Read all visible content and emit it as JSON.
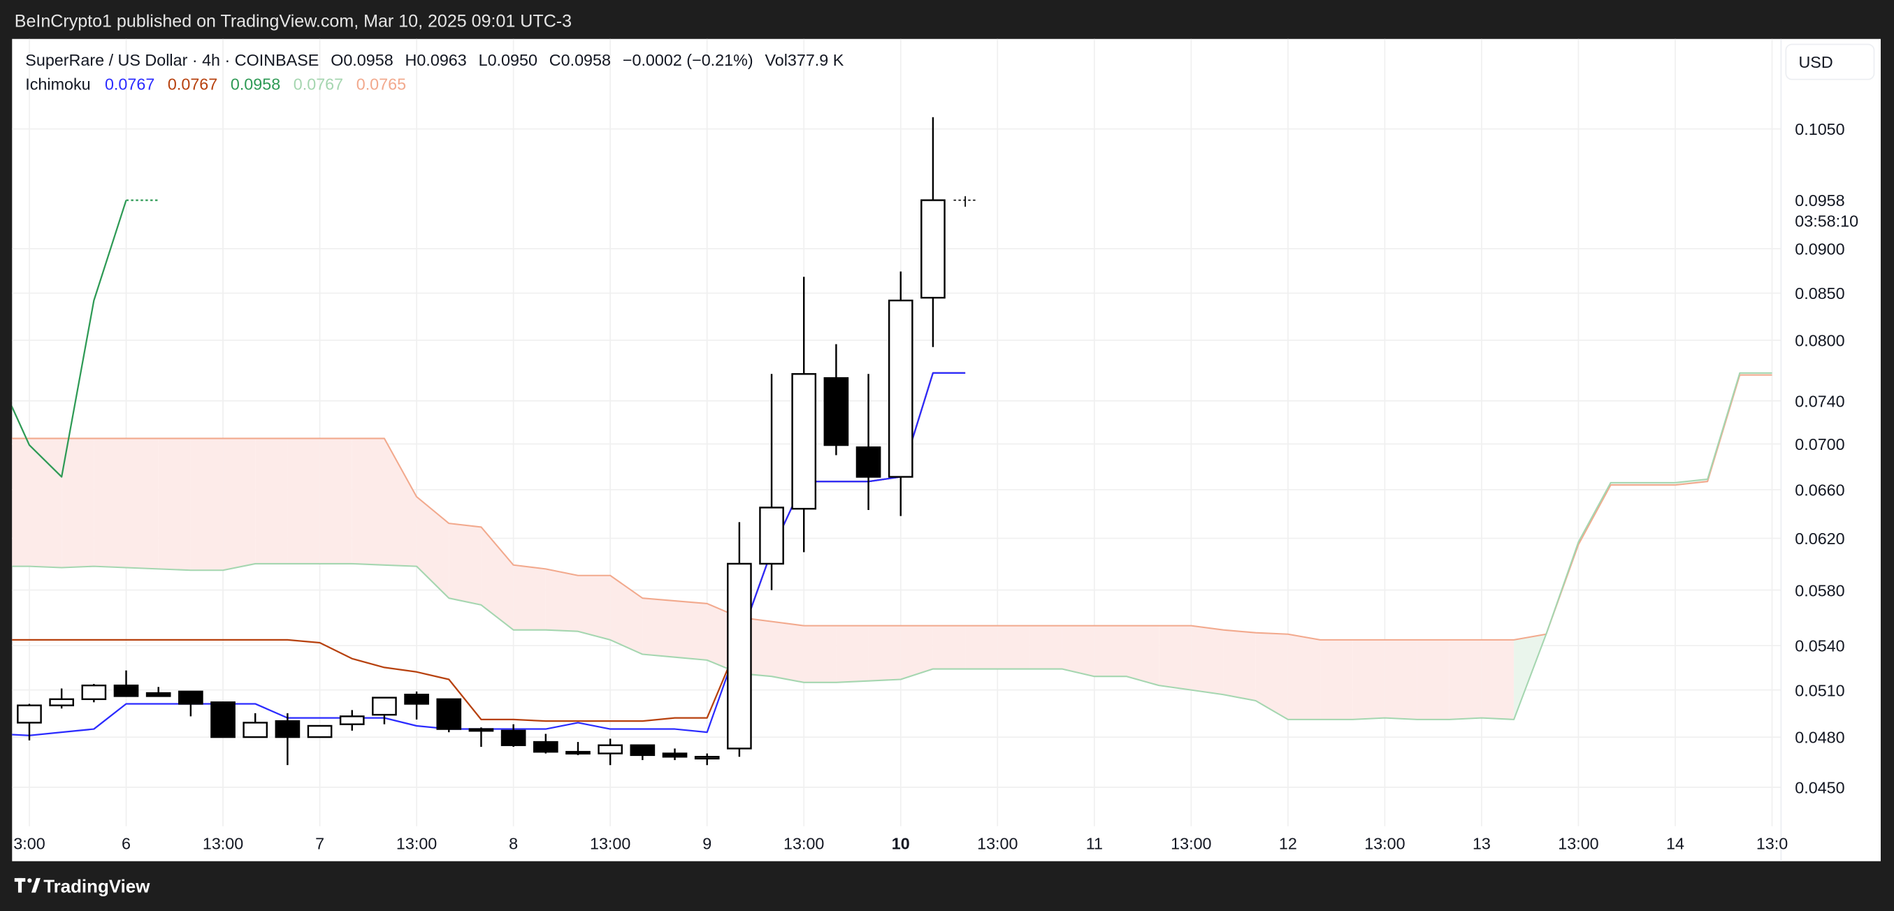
{
  "publish_bar": {
    "text": "BeInCrypto1 published on TradingView.com, Mar 10, 2025 09:01 UTC-3"
  },
  "legend": {
    "symbol": "SuperRare / US Dollar · 4h · COINBASE",
    "open": "O0.0958",
    "high": "H0.0963",
    "low": "L0.0950",
    "close": "C0.0958",
    "change": "−0.0002 (−0.21%)",
    "volume": "Vol377.9 K",
    "indicator_name": "Ichimoku",
    "indicator_values": [
      "0.0767",
      "0.0767",
      "0.0958",
      "0.0767",
      "0.0765"
    ]
  },
  "currency_button": "USD",
  "footer": {
    "brand": "TradingView"
  },
  "colors": {
    "tenkan": "#2b2bff",
    "kijun": "#b7410e",
    "chikou": "#2e9a55",
    "senkou_a": "#a5d6b0",
    "senkou_b": "#f2a98d",
    "cloud_bear": "#fdebe9",
    "cloud_bull": "#eaf5ec",
    "frame": "#1e1e1e"
  },
  "chart_data": {
    "type": "candlestick",
    "title": "SuperRare / US Dollar · 4h · COINBASE",
    "y_scale": "log",
    "ylim": [
      0.0428,
      0.1179
    ],
    "xlim_bars": [
      -0.535,
      54.26
    ],
    "grid": true,
    "price_ticks": [
      "0.1050",
      "0.0900",
      "0.0850",
      "0.0800",
      "0.0740",
      "0.0700",
      "0.0660",
      "0.0620",
      "0.0580",
      "0.0540",
      "0.0510",
      "0.0480",
      "0.0450"
    ],
    "current_price": {
      "value": "0.0958",
      "countdown": "03:58:10"
    },
    "x_ticks": [
      {
        "bar": 0,
        "label": "3:00"
      },
      {
        "bar": 3,
        "label": "6"
      },
      {
        "bar": 6,
        "label": "13:00"
      },
      {
        "bar": 9,
        "label": "7"
      },
      {
        "bar": 12,
        "label": "13:00"
      },
      {
        "bar": 15,
        "label": "8"
      },
      {
        "bar": 18,
        "label": "13:00"
      },
      {
        "bar": 21,
        "label": "9"
      },
      {
        "bar": 24,
        "label": "13:00"
      },
      {
        "bar": 27,
        "label": "10",
        "bold": true
      },
      {
        "bar": 30,
        "label": "13:00"
      },
      {
        "bar": 33,
        "label": "11"
      },
      {
        "bar": 36,
        "label": "13:00"
      },
      {
        "bar": 39,
        "label": "12"
      },
      {
        "bar": 42,
        "label": "13:00"
      },
      {
        "bar": 45,
        "label": "13"
      },
      {
        "bar": 48,
        "label": "13:00"
      },
      {
        "bar": 51,
        "label": "14"
      },
      {
        "bar": 54,
        "label": "13:0"
      }
    ],
    "candles_ohlc": [
      [
        0.0489,
        0.0501,
        0.0478,
        0.05
      ],
      [
        0.05,
        0.0511,
        0.0498,
        0.0504
      ],
      [
        0.0504,
        0.0514,
        0.0502,
        0.0513
      ],
      [
        0.0513,
        0.0523,
        0.0506,
        0.0506
      ],
      [
        0.0508,
        0.0512,
        0.0506,
        0.0506
      ],
      [
        0.0509,
        0.0509,
        0.0493,
        0.0501
      ],
      [
        0.0502,
        0.0502,
        0.048,
        0.048
      ],
      [
        0.048,
        0.0495,
        0.048,
        0.0489
      ],
      [
        0.049,
        0.0495,
        0.0463,
        0.048
      ],
      [
        0.048,
        0.0487,
        0.048,
        0.0487
      ],
      [
        0.0488,
        0.0497,
        0.0484,
        0.0493
      ],
      [
        0.0494,
        0.0505,
        0.0488,
        0.0505
      ],
      [
        0.0507,
        0.0509,
        0.0491,
        0.0501
      ],
      [
        0.0504,
        0.0504,
        0.0483,
        0.0485
      ],
      [
        0.0485,
        0.0486,
        0.0474,
        0.0484
      ],
      [
        0.0484,
        0.0488,
        0.0474,
        0.0475
      ],
      [
        0.0477,
        0.0482,
        0.047,
        0.0471
      ],
      [
        0.0471,
        0.0477,
        0.0469,
        0.047
      ],
      [
        0.047,
        0.0479,
        0.0463,
        0.0475
      ],
      [
        0.0475,
        0.0475,
        0.0466,
        0.0469
      ],
      [
        0.047,
        0.0473,
        0.0466,
        0.0468
      ],
      [
        0.0467,
        0.047,
        0.0463,
        0.0468
      ],
      [
        0.0473,
        0.0633,
        0.0468,
        0.06
      ],
      [
        0.06,
        0.0766,
        0.058,
        0.0645
      ],
      [
        0.0644,
        0.0868,
        0.0609,
        0.0766
      ],
      [
        0.0762,
        0.0796,
        0.069,
        0.0699
      ],
      [
        0.0697,
        0.0766,
        0.0643,
        0.0671
      ],
      [
        0.0671,
        0.0874,
        0.0638,
        0.0842
      ],
      [
        0.0845,
        0.1066,
        0.0793,
        0.0958
      ],
      [
        0.0958,
        0.0963,
        0.095,
        0.0958
      ]
    ],
    "series": [
      {
        "name": "Tenkan",
        "start_bar": -1,
        "values": [
          0.0482,
          0.0481,
          0.0483,
          0.0485,
          0.0501,
          0.0501,
          0.0501,
          0.0501,
          0.0501,
          0.0492,
          0.0492,
          0.0492,
          0.0492,
          0.0487,
          0.0485,
          0.0485,
          0.0485,
          0.0485,
          0.0489,
          0.0485,
          0.0485,
          0.0485,
          0.0483,
          0.0543,
          0.061,
          0.0667,
          0.0667,
          0.0667,
          0.0671,
          0.0767,
          0.0767
        ]
      },
      {
        "name": "Kijun",
        "start_bar": -1,
        "values": [
          0.0544,
          0.0544,
          0.0544,
          0.0544,
          0.0544,
          0.0544,
          0.0544,
          0.0544,
          0.0544,
          0.0544,
          0.0542,
          0.0531,
          0.0525,
          0.0522,
          0.0517,
          0.0491,
          0.0491,
          0.049,
          0.049,
          0.049,
          0.049,
          0.0492,
          0.0492,
          0.0543,
          0.061,
          0.0667,
          0.0667,
          0.0667,
          0.0671,
          0.0767,
          0.0767
        ]
      },
      {
        "name": "Chikou",
        "start_bar": -1,
        "values": [
          0.0766,
          0.0699,
          0.0671,
          0.0842,
          0.0958,
          0.0958
        ]
      },
      {
        "name": "Senkou A",
        "start_bar": -1,
        "values": [
          0.0598,
          0.0598,
          0.0597,
          0.0598,
          0.0597,
          0.0596,
          0.0595,
          0.0595,
          0.06,
          0.06,
          0.06,
          0.06,
          0.0599,
          0.0598,
          0.0574,
          0.0569,
          0.0551,
          0.0551,
          0.055,
          0.0544,
          0.0534,
          0.0532,
          0.053,
          0.0521,
          0.0519,
          0.0515,
          0.0515,
          0.0516,
          0.0517,
          0.0524,
          0.0524,
          0.0524,
          0.0524,
          0.0524,
          0.0519,
          0.0519,
          0.0513,
          0.051,
          0.0507,
          0.0503,
          0.0491,
          0.0491,
          0.0491,
          0.0492,
          0.0491,
          0.0491,
          0.0492,
          0.0491,
          0.0548,
          0.0617,
          0.0666,
          0.0666,
          0.0666,
          0.0669,
          0.0767,
          0.0767
        ]
      },
      {
        "name": "Senkou B",
        "start_bar": -1,
        "values": [
          0.0705,
          0.0705,
          0.0705,
          0.0705,
          0.0705,
          0.0705,
          0.0705,
          0.0705,
          0.0705,
          0.0705,
          0.0705,
          0.0705,
          0.0705,
          0.0654,
          0.0632,
          0.0629,
          0.0599,
          0.0596,
          0.0591,
          0.0591,
          0.0574,
          0.0572,
          0.057,
          0.056,
          0.0557,
          0.0554,
          0.0554,
          0.0554,
          0.0554,
          0.0554,
          0.0554,
          0.0554,
          0.0554,
          0.0554,
          0.0554,
          0.0554,
          0.0554,
          0.0554,
          0.0551,
          0.0549,
          0.0548,
          0.0544,
          0.0544,
          0.0544,
          0.0544,
          0.0544,
          0.0544,
          0.0544,
          0.0548,
          0.0615,
          0.0664,
          0.0664,
          0.0664,
          0.0667,
          0.0765,
          0.0765
        ]
      }
    ]
  }
}
